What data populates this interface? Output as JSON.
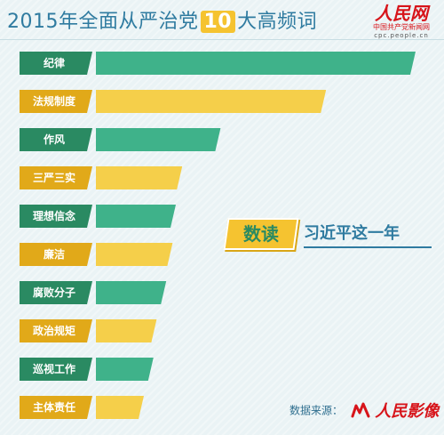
{
  "header": {
    "title_prefix": "2015年全面从严治党",
    "title_number": "10",
    "title_suffix": "大高频词"
  },
  "logo": {
    "name": "人民网",
    "subtitle": "中国共产党新闻网",
    "url": "cpc.people.cn"
  },
  "promo": {
    "badge": "数读",
    "text": "习近平这一年"
  },
  "source": {
    "label": "数据来源：",
    "name": "人民影像"
  },
  "colors": {
    "green": "#3fb28a",
    "green_dark": "#2a8a62",
    "yellow": "#f5cf4a",
    "yellow_dark": "#e1a919"
  },
  "chart_data": {
    "type": "bar",
    "orientation": "horizontal",
    "categories": [
      "纪律",
      "法规制度",
      "作风",
      "三严三实",
      "理想信念",
      "廉洁",
      "腐败分子",
      "政治规矩",
      "巡视工作",
      "主体责任"
    ],
    "values": [
      100,
      72,
      39,
      27,
      25,
      24,
      22,
      19,
      18,
      15
    ],
    "title": "2015年全面从严治党10大高频词",
    "xlabel": "",
    "ylabel": "",
    "xlim": [
      0,
      100
    ],
    "grid": false,
    "legend": false
  }
}
